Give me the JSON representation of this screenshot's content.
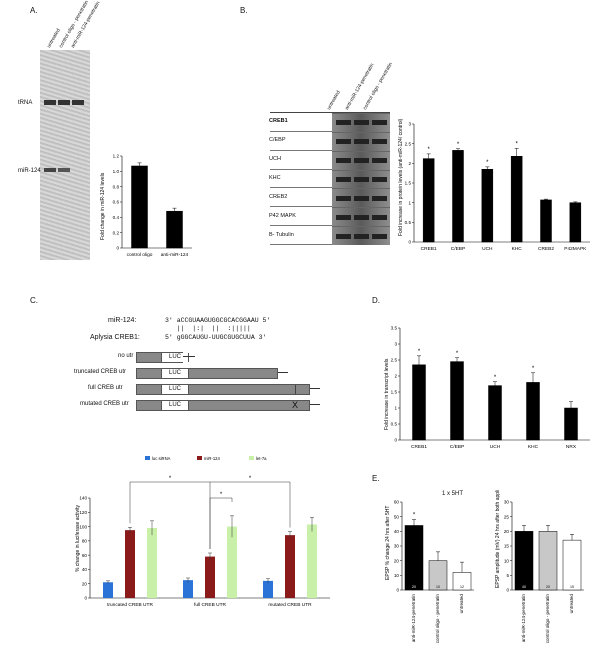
{
  "panel_a": {
    "label": "A.",
    "lanes": [
      "untreated",
      "control oligo - penetratin",
      "anti-miR-124-penetratin"
    ],
    "band_labels": [
      "tRNA",
      "miR-124"
    ],
    "chart_data": {
      "type": "bar",
      "categories": [
        "control oligo",
        "anti-miR-124"
      ],
      "values": [
        1.07,
        0.48
      ],
      "errors": [
        0.04,
        0.04
      ],
      "ylabel": "Fold change in miR-124 levels",
      "ylim": [
        0,
        1.2
      ],
      "yticks": [
        "0",
        "0.2",
        "0.4",
        "0.6",
        "0.8",
        "1.0",
        "1.2"
      ],
      "bar_color": "#000000"
    }
  },
  "panel_b": {
    "label": "B.",
    "lanes": [
      "untreated",
      "anti-miR-124-penetratin",
      "control oligo - penetratin"
    ],
    "blot_rows": [
      "CREB1",
      "C/EBP",
      "UCH",
      "KHC",
      "CREB2",
      "P42 MAPK",
      "B- Tubulin"
    ],
    "chart_data": {
      "type": "bar",
      "categories": [
        "CREB1",
        "C/EBP",
        "UCH",
        "KHC",
        "CREB2",
        "P42MAPK"
      ],
      "values": [
        2.12,
        2.33,
        1.85,
        2.18,
        1.07,
        1.0
      ],
      "errors": [
        0.12,
        0.04,
        0.06,
        0.2,
        0.02,
        0.02
      ],
      "significant": [
        true,
        true,
        true,
        true,
        false,
        false
      ],
      "ylabel": "Fold increase in protein levels (anti-miR-124/ control)",
      "ylim": [
        0,
        3
      ],
      "yticks": [
        "0",
        "0.5",
        "1",
        "1.5",
        "2",
        "2.5",
        "3"
      ],
      "bar_color": "#000000",
      "star": "*"
    }
  },
  "panel_c": {
    "label": "C.",
    "mir_label": "miR-124:",
    "mir_seq": "3' aCCGUAAGUGGCGCACGGAAU 5'",
    "pair_marks": "   ||  |:|  ||  :|||||  ",
    "creb_label": "Aplysia CREB1:",
    "creb_seq": "5' gGGCAUGU-UUGCGUGCUUA 3'",
    "constructs": [
      "no utr",
      "truncated CREB utr",
      "full CREB utr",
      "mutated CREB utr"
    ],
    "luc": "LUC",
    "mutation_mark": "X",
    "chart_data": {
      "type": "bar",
      "categories": [
        "truncated CREB UTR",
        "full CREB UTR",
        "mutated CREB UTR"
      ],
      "series": [
        {
          "name": "luc siRNA",
          "color": "#2b73d6",
          "values": [
            22,
            25,
            24
          ],
          "errors": [
            2,
            3,
            3
          ]
        },
        {
          "name": "miR-124",
          "color": "#8b1a1a",
          "values": [
            95,
            58,
            88
          ],
          "errors": [
            4,
            5,
            5
          ]
        },
        {
          "name": "let-7a",
          "color": "#c8f0a8",
          "values": [
            98,
            100,
            103
          ],
          "errors": [
            10,
            15,
            10
          ]
        }
      ],
      "ylabel": "% change in luciferase activity",
      "ylim": [
        0,
        140
      ],
      "yticks": [
        "0",
        "20",
        "40",
        "60",
        "80",
        "100",
        "120",
        "140"
      ],
      "legend": "top",
      "star": "*"
    }
  },
  "panel_d": {
    "label": "D.",
    "chart_data": {
      "type": "bar",
      "categories": [
        "CREB1",
        "C/EBP",
        "UCH",
        "KHC",
        "NRX"
      ],
      "values": [
        2.35,
        2.45,
        1.7,
        1.8,
        1.0
      ],
      "errors": [
        0.28,
        0.12,
        0.12,
        0.3,
        0.2
      ],
      "significant": [
        true,
        true,
        true,
        true,
        false
      ],
      "ylabel": "Fold increase in transcript levels",
      "ylim": [
        0,
        3.5
      ],
      "yticks": [
        "0",
        "0.5",
        "1",
        "1.5",
        "2",
        "2.5",
        "3",
        "3.5"
      ],
      "bar_color": "#000000",
      "star": "*"
    }
  },
  "panel_e": {
    "label": "E.",
    "title": "1 x 5HT",
    "chart_data": [
      {
        "type": "bar",
        "categories": [
          "anti-miR-124-penetratin",
          "control oligo - penetratin",
          "untreated"
        ],
        "values": [
          44,
          20,
          12
        ],
        "errors": [
          4,
          6,
          7
        ],
        "n": [
          "20",
          "10",
          "12"
        ],
        "significant": [
          true,
          false,
          false
        ],
        "colors": [
          "#000000",
          "#c8c8c8",
          "#ffffff"
        ],
        "ylabel": "EPSP % change 24 hrs after 5HT",
        "ylim": [
          0,
          60
        ],
        "yticks": [
          "0",
          "10",
          "20",
          "30",
          "40",
          "50",
          "60"
        ],
        "star": "*"
      },
      {
        "type": "bar",
        "categories": [
          "anti-miR-124-penetratin",
          "control oligo - penetratin",
          "untreated"
        ],
        "values": [
          20,
          20,
          17
        ],
        "errors": [
          2,
          2,
          2
        ],
        "n": [
          "40",
          "20",
          "15"
        ],
        "colors": [
          "#000000",
          "#c8c8c8",
          "#ffffff"
        ],
        "ylabel": "EPSP amplitude (mV) 24 hrs after both application",
        "ylim": [
          0,
          30
        ],
        "yticks": [
          "0",
          "5",
          "10",
          "15",
          "20",
          "25",
          "30"
        ]
      }
    ]
  }
}
